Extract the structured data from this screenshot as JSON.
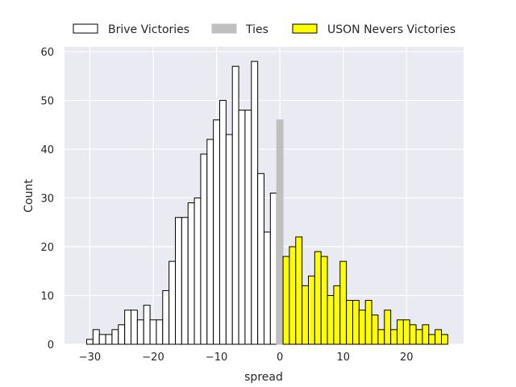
{
  "chart_data": {
    "type": "bar",
    "subtype": "histogram",
    "xlabel": "spread",
    "ylabel": "Count",
    "xlim": [
      -34,
      29
    ],
    "ylim": [
      0,
      61
    ],
    "xticks": [
      -30,
      -20,
      -10,
      0,
      10,
      20
    ],
    "yticks": [
      0,
      10,
      20,
      30,
      40,
      50,
      60
    ],
    "xtick_labels": [
      "−30",
      "−20",
      "−10",
      "0",
      "10",
      "20"
    ],
    "ytick_labels": [
      "0",
      "10",
      "20",
      "30",
      "40",
      "50",
      "60"
    ],
    "bin_width": 1,
    "grid": true,
    "legend_position": "top",
    "background": "#eaeaf2",
    "series": [
      {
        "name": "Brive Victories",
        "fill": "#ffffff",
        "edge": "#000000",
        "bins": [
          {
            "x": -30,
            "count": 1
          },
          {
            "x": -29,
            "count": 3
          },
          {
            "x": -28,
            "count": 2
          },
          {
            "x": -27,
            "count": 2
          },
          {
            "x": -26,
            "count": 3
          },
          {
            "x": -25,
            "count": 4
          },
          {
            "x": -24,
            "count": 7
          },
          {
            "x": -23,
            "count": 7
          },
          {
            "x": -22,
            "count": 5
          },
          {
            "x": -21,
            "count": 8
          },
          {
            "x": -20,
            "count": 5
          },
          {
            "x": -19,
            "count": 5
          },
          {
            "x": -18,
            "count": 11
          },
          {
            "x": -17,
            "count": 17
          },
          {
            "x": -16,
            "count": 26
          },
          {
            "x": -15,
            "count": 26
          },
          {
            "x": -14,
            "count": 29
          },
          {
            "x": -13,
            "count": 30
          },
          {
            "x": -12,
            "count": 39
          },
          {
            "x": -11,
            "count": 42
          },
          {
            "x": -10,
            "count": 46
          },
          {
            "x": -9,
            "count": 50
          },
          {
            "x": -8,
            "count": 43
          },
          {
            "x": -7,
            "count": 57
          },
          {
            "x": -6,
            "count": 48
          },
          {
            "x": -5,
            "count": 48
          },
          {
            "x": -4,
            "count": 58
          },
          {
            "x": -3,
            "count": 35
          },
          {
            "x": -2,
            "count": 23
          },
          {
            "x": -1,
            "count": 31
          }
        ]
      },
      {
        "name": "Ties",
        "fill": "#bfbfbf",
        "edge": "#bfbfbf",
        "bins": [
          {
            "x": 0,
            "count": 46
          }
        ]
      },
      {
        "name": "USON Nevers Victories",
        "fill": "#ffff00",
        "edge": "#000000",
        "bins": [
          {
            "x": 1,
            "count": 18
          },
          {
            "x": 2,
            "count": 20
          },
          {
            "x": 3,
            "count": 22
          },
          {
            "x": 4,
            "count": 12
          },
          {
            "x": 5,
            "count": 14
          },
          {
            "x": 6,
            "count": 19
          },
          {
            "x": 7,
            "count": 18
          },
          {
            "x": 8,
            "count": 10
          },
          {
            "x": 9,
            "count": 12
          },
          {
            "x": 10,
            "count": 17
          },
          {
            "x": 11,
            "count": 9
          },
          {
            "x": 12,
            "count": 9
          },
          {
            "x": 13,
            "count": 7
          },
          {
            "x": 14,
            "count": 9
          },
          {
            "x": 15,
            "count": 6
          },
          {
            "x": 16,
            "count": 3
          },
          {
            "x": 17,
            "count": 7
          },
          {
            "x": 18,
            "count": 3
          },
          {
            "x": 19,
            "count": 5
          },
          {
            "x": 20,
            "count": 5
          },
          {
            "x": 21,
            "count": 4
          },
          {
            "x": 22,
            "count": 3
          },
          {
            "x": 23,
            "count": 4
          },
          {
            "x": 24,
            "count": 2
          },
          {
            "x": 25,
            "count": 3
          },
          {
            "x": 26,
            "count": 2
          }
        ]
      }
    ]
  }
}
